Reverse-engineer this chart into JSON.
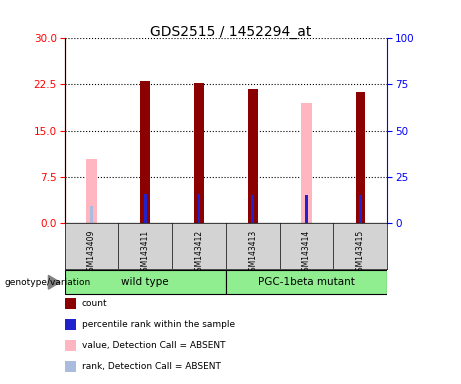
{
  "title": "GDS2515 / 1452294_at",
  "samples": [
    "GSM143409",
    "GSM143411",
    "GSM143412",
    "GSM143413",
    "GSM143414",
    "GSM143415"
  ],
  "count_values": [
    null,
    23.0,
    22.8,
    21.7,
    null,
    21.3
  ],
  "rank_values": [
    null,
    15.8,
    15.5,
    14.9,
    14.85,
    14.95
  ],
  "absent_value_values": [
    10.3,
    null,
    null,
    null,
    19.5,
    null
  ],
  "absent_rank_values": [
    9.0,
    null,
    null,
    null,
    14.75,
    null
  ],
  "ylim_left": [
    0,
    30
  ],
  "ylim_right": [
    0,
    100
  ],
  "yticks_left": [
    0,
    7.5,
    15,
    22.5,
    30
  ],
  "yticks_right": [
    0,
    25,
    50,
    75,
    100
  ],
  "count_color": "#8B0000",
  "rank_color": "#2222CC",
  "absent_value_color": "#FFB6C1",
  "absent_rank_color": "#AABBDD",
  "wt_group_color": "#90EE90",
  "pgc_group_color": "#90EE90",
  "sample_box_color": "#d3d3d3",
  "genotype_label": "genotype/variation",
  "legend_items": [
    {
      "label": "count",
      "color": "#8B0000"
    },
    {
      "label": "percentile rank within the sample",
      "color": "#2222CC"
    },
    {
      "label": "value, Detection Call = ABSENT",
      "color": "#FFB6C1"
    },
    {
      "label": "rank, Detection Call = ABSENT",
      "color": "#AABBDD"
    }
  ]
}
